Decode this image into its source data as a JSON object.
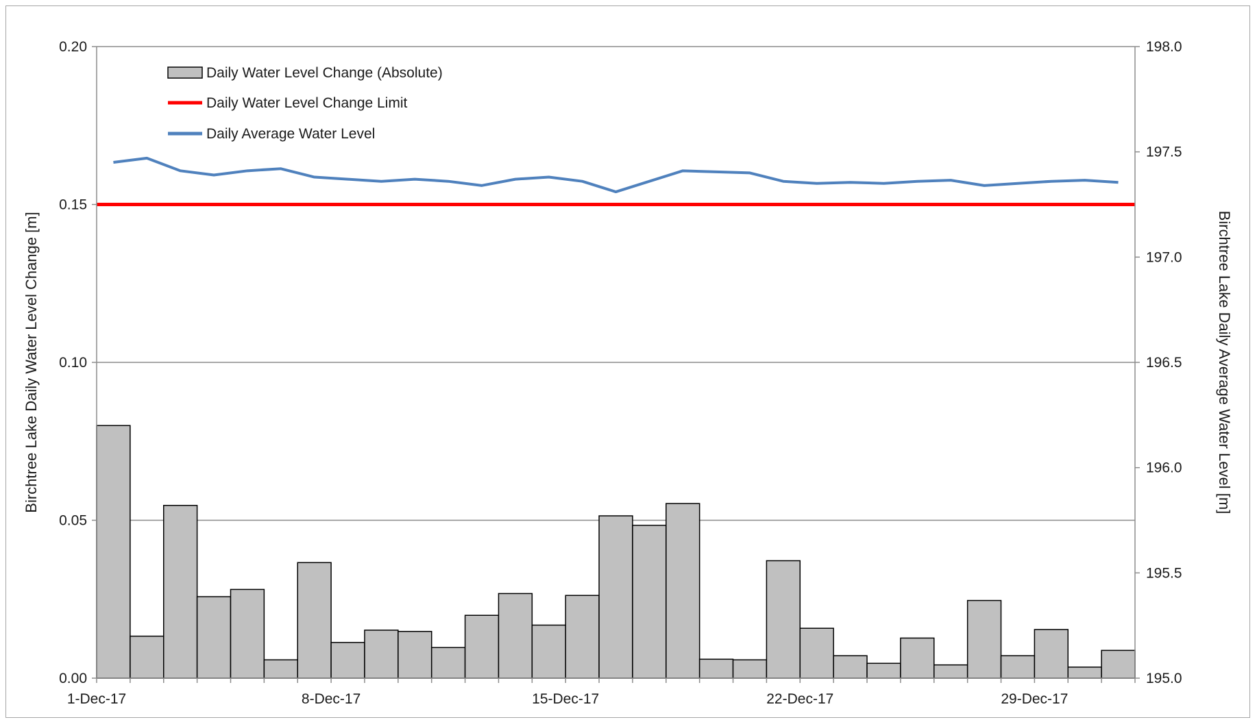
{
  "chart_data": {
    "type": "bar",
    "xlabel": "",
    "ylabel": "Birchtree Lake Daily Water Level Change [m]",
    "y2label": "Birchtree Lake Daily Average Water Level [m]",
    "ylim": [
      0,
      0.2
    ],
    "y2lim": [
      195.0,
      198.0
    ],
    "yticks": [
      "0.00",
      "0.05",
      "0.10",
      "0.15",
      "0.20"
    ],
    "y2ticks": [
      "195.0",
      "195.5",
      "196.0",
      "196.5",
      "197.0",
      "197.5",
      "198.0"
    ],
    "xtick_labels": [
      "1-Dec-17",
      "8-Dec-17",
      "15-Dec-17",
      "22-Dec-17",
      "29-Dec-17"
    ],
    "grid": "horizontal",
    "legend_position": "top-left",
    "colors": {
      "bars": "#c0c0c0",
      "bar_edge": "#000000",
      "limit": "#ff0000",
      "level": "#4f81bd",
      "grid": "#8c8c8c"
    },
    "x": [
      "1-Dec-17",
      "2-Dec-17",
      "3-Dec-17",
      "4-Dec-17",
      "5-Dec-17",
      "6-Dec-17",
      "7-Dec-17",
      "8-Dec-17",
      "9-Dec-17",
      "10-Dec-17",
      "11-Dec-17",
      "12-Dec-17",
      "13-Dec-17",
      "14-Dec-17",
      "15-Dec-17",
      "16-Dec-17",
      "17-Dec-17",
      "18-Dec-17",
      "19-Dec-17",
      "20-Dec-17",
      "21-Dec-17",
      "22-Dec-17",
      "23-Dec-17",
      "24-Dec-17",
      "25-Dec-17",
      "26-Dec-17",
      "27-Dec-17",
      "28-Dec-17",
      "29-Dec-17",
      "30-Dec-17",
      "31-Dec-17"
    ],
    "series": [
      {
        "name": "Daily Water Level Change (Absolute)",
        "kind": "bar",
        "axis": "left",
        "values": [
          0.08,
          0.0133,
          0.0547,
          0.0258,
          0.0281,
          0.0058,
          0.0366,
          0.0113,
          0.0152,
          0.0148,
          0.0097,
          0.0199,
          0.0268,
          0.0168,
          0.0262,
          0.0514,
          0.0484,
          0.0553,
          0.006,
          0.0058,
          0.0372,
          0.0158,
          0.0071,
          0.0047,
          0.0127,
          0.0042,
          0.0246,
          0.0071,
          0.0154,
          0.0035,
          0.0088
        ]
      },
      {
        "name": "Daily Water Level Change Limit",
        "kind": "line",
        "axis": "left",
        "values": [
          0.15,
          0.15,
          0.15,
          0.15,
          0.15,
          0.15,
          0.15,
          0.15,
          0.15,
          0.15,
          0.15,
          0.15,
          0.15,
          0.15,
          0.15,
          0.15,
          0.15,
          0.15,
          0.15,
          0.15,
          0.15,
          0.15,
          0.15,
          0.15,
          0.15,
          0.15,
          0.15,
          0.15,
          0.15,
          0.15,
          0.15
        ]
      },
      {
        "name": "Daily Average Water Level",
        "kind": "line",
        "axis": "right",
        "values": [
          197.45,
          197.47,
          197.41,
          197.39,
          197.41,
          197.42,
          197.38,
          197.37,
          197.36,
          197.37,
          197.36,
          197.34,
          197.37,
          197.38,
          197.36,
          197.31,
          197.36,
          197.41,
          197.405,
          197.4,
          197.36,
          197.35,
          197.355,
          197.35,
          197.36,
          197.365,
          197.34,
          197.35,
          197.36,
          197.365,
          197.355
        ]
      }
    ]
  }
}
